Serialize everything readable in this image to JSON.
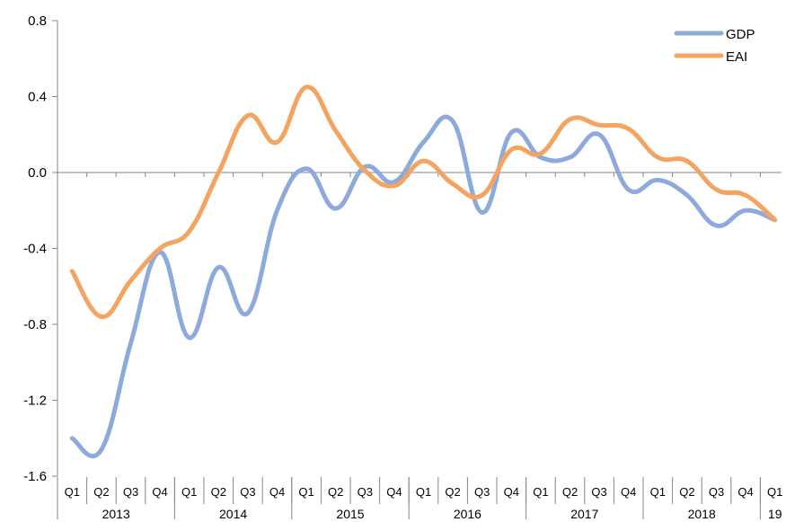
{
  "chart_data": {
    "type": "line",
    "title": "",
    "xlabel": "",
    "ylabel": "",
    "ylim": [
      -1.6,
      0.8
    ],
    "yticks": [
      "0.8",
      "0.4",
      "0.0",
      "-0.4",
      "-0.8",
      "-1.2",
      "-1.6"
    ],
    "ytick_values": [
      0.8,
      0.4,
      0.0,
      -0.4,
      -0.8,
      -1.2,
      -1.6
    ],
    "grid": false,
    "legend_position": "top-right",
    "categories": [
      "Q1",
      "Q2",
      "Q3",
      "Q4",
      "Q1",
      "Q2",
      "Q3",
      "Q4",
      "Q1",
      "Q2",
      "Q3",
      "Q4",
      "Q1",
      "Q2",
      "Q3",
      "Q4",
      "Q1",
      "Q2",
      "Q3",
      "Q4",
      "Q1",
      "Q2",
      "Q3",
      "Q4",
      "Q1"
    ],
    "year_groups": [
      {
        "label": "2013",
        "count": 4
      },
      {
        "label": "2014",
        "count": 4
      },
      {
        "label": "2015",
        "count": 4
      },
      {
        "label": "2016",
        "count": 4
      },
      {
        "label": "2017",
        "count": 4
      },
      {
        "label": "2018",
        "count": 4
      },
      {
        "label": "19",
        "count": 1
      }
    ],
    "series": [
      {
        "name": "GDP",
        "color": "#8EA9DB",
        "values": [
          -1.4,
          -1.46,
          -0.9,
          -0.42,
          -0.87,
          -0.5,
          -0.74,
          -0.2,
          0.02,
          -0.19,
          0.03,
          -0.05,
          0.16,
          0.27,
          -0.21,
          0.21,
          0.08,
          0.08,
          0.2,
          -0.09,
          -0.04,
          -0.12,
          -0.28,
          -0.2,
          -0.25
        ]
      },
      {
        "name": "EAI",
        "color": "#F4A460",
        "values": [
          -0.52,
          -0.76,
          -0.57,
          -0.4,
          -0.31,
          0.0,
          0.3,
          0.16,
          0.45,
          0.22,
          0.01,
          -0.07,
          0.06,
          -0.06,
          -0.12,
          0.12,
          0.1,
          0.28,
          0.25,
          0.23,
          0.08,
          0.06,
          -0.09,
          -0.12,
          -0.25
        ]
      }
    ]
  }
}
